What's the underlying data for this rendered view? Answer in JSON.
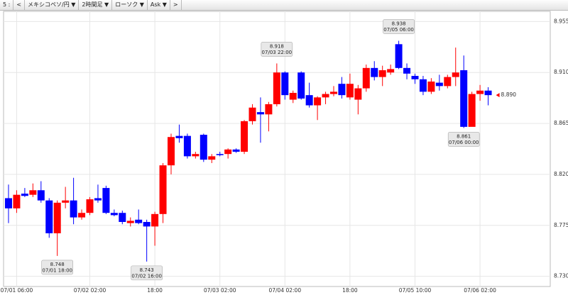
{
  "toolbar": [
    "5 :",
    "<",
    "メキシコペソ/円 ▼",
    "2時間足 ▼",
    "ローソク ▼",
    "Ask ▼",
    ">"
  ],
  "chart_data": {
    "type": "candlestick",
    "categories": [
      null,
      "07/01 06:00",
      null,
      null,
      null,
      null,
      null,
      null,
      null,
      null,
      "07/02 02:00",
      null,
      null,
      null,
      null,
      null,
      null,
      null,
      "18:00",
      null,
      null,
      null,
      null,
      null,
      null,
      null,
      "07/03 02:00",
      null,
      null,
      null,
      null,
      null,
      null,
      null,
      "07/04 02:00",
      null,
      null,
      null,
      null,
      null,
      null,
      null,
      "18:00",
      null,
      null,
      null,
      null,
      null,
      null,
      null,
      "07/05 10:00",
      null,
      null,
      null,
      null,
      null,
      null,
      null,
      "07/06 02:00",
      null
    ],
    "open": [
      8.799,
      8.79,
      8.803,
      8.802,
      8.806,
      8.797,
      8.768,
      8.795,
      8.797,
      8.782,
      8.786,
      8.799,
      8.808,
      8.786,
      8.786,
      8.777,
      8.78,
      8.778,
      8.774,
      8.785,
      8.828,
      8.854,
      8.854,
      8.836,
      8.855,
      8.833,
      8.838,
      8.838,
      8.842,
      8.84,
      8.867,
      8.875,
      8.873,
      8.882,
      8.91,
      8.886,
      8.91,
      8.89,
      8.881,
      8.888,
      8.891,
      8.9,
      8.888,
      8.886,
      8.896,
      8.914,
      8.906,
      8.91,
      8.935,
      8.914,
      8.907,
      8.904,
      8.893,
      8.901,
      8.898,
      8.906,
      8.912,
      8.862,
      8.891,
      8.894
    ],
    "high": [
      8.811,
      8.806,
      8.808,
      8.812,
      8.814,
      8.799,
      8.797,
      8.809,
      8.817,
      8.789,
      8.8,
      8.811,
      8.81,
      8.789,
      8.788,
      8.782,
      8.789,
      8.78,
      8.787,
      8.83,
      8.856,
      8.864,
      8.856,
      8.84,
      8.856,
      8.838,
      8.84,
      8.843,
      8.843,
      8.868,
      8.882,
      8.888,
      8.884,
      8.918,
      8.911,
      8.894,
      8.911,
      8.901,
      8.889,
      8.893,
      8.898,
      8.906,
      8.909,
      8.899,
      8.917,
      8.92,
      8.916,
      8.917,
      8.938,
      8.918,
      8.909,
      8.907,
      8.905,
      8.908,
      8.908,
      8.932,
      8.925,
      8.893,
      8.899,
      8.897
    ],
    "low": [
      8.777,
      8.786,
      8.8,
      8.8,
      8.795,
      8.764,
      8.748,
      8.79,
      8.776,
      8.78,
      8.784,
      8.795,
      8.785,
      8.783,
      8.776,
      8.774,
      8.776,
      8.743,
      8.757,
      8.777,
      8.82,
      8.848,
      8.834,
      8.834,
      8.831,
      8.83,
      8.836,
      8.834,
      8.839,
      8.838,
      8.864,
      8.848,
      8.858,
      8.88,
      8.886,
      8.883,
      8.886,
      8.879,
      8.868,
      8.882,
      8.889,
      8.887,
      8.886,
      8.873,
      8.893,
      8.903,
      8.898,
      8.908,
      8.913,
      8.904,
      8.9,
      8.89,
      8.891,
      8.894,
      8.896,
      8.898,
      8.861,
      8.863,
      8.885,
      8.881
    ],
    "close": [
      8.79,
      8.802,
      8.801,
      8.806,
      8.797,
      8.768,
      8.795,
      8.797,
      8.782,
      8.786,
      8.798,
      8.797,
      8.786,
      8.784,
      8.778,
      8.779,
      8.777,
      8.774,
      8.785,
      8.828,
      8.853,
      8.852,
      8.836,
      8.838,
      8.833,
      8.836,
      8.837,
      8.842,
      8.84,
      8.867,
      8.879,
      8.873,
      8.882,
      8.91,
      8.89,
      8.892,
      8.887,
      8.881,
      8.888,
      8.891,
      8.893,
      8.89,
      8.9,
      8.896,
      8.914,
      8.906,
      8.912,
      8.913,
      8.914,
      8.909,
      8.904,
      8.893,
      8.902,
      8.898,
      8.906,
      8.91,
      8.862,
      8.891,
      8.894,
      8.89
    ],
    "up_color": "#ff0000",
    "down_color": "#0000ff",
    "ylim": [
      8.721,
      8.964
    ],
    "yticks": [
      8.955,
      {
        "value": 8.91,
        "label": "8.910"
      },
      8.865,
      {
        "value": 8.82,
        "label": "8.820"
      },
      8.775,
      {
        "value": 8.73,
        "label": "8.730"
      }
    ],
    "grid": true,
    "annotations": [
      {
        "value": 8.748,
        "time": "07/01 18:00"
      },
      {
        "value": 8.743,
        "time": "07/02 16:00"
      },
      {
        "value": 8.918,
        "time": "07/03 22:00"
      },
      {
        "value": 8.938,
        "time": "07/05 06:00"
      },
      {
        "value": 8.861,
        "time": "07/06 00:00"
      }
    ],
    "current_price": {
      "value": 8.89,
      "label": "8.890"
    }
  }
}
